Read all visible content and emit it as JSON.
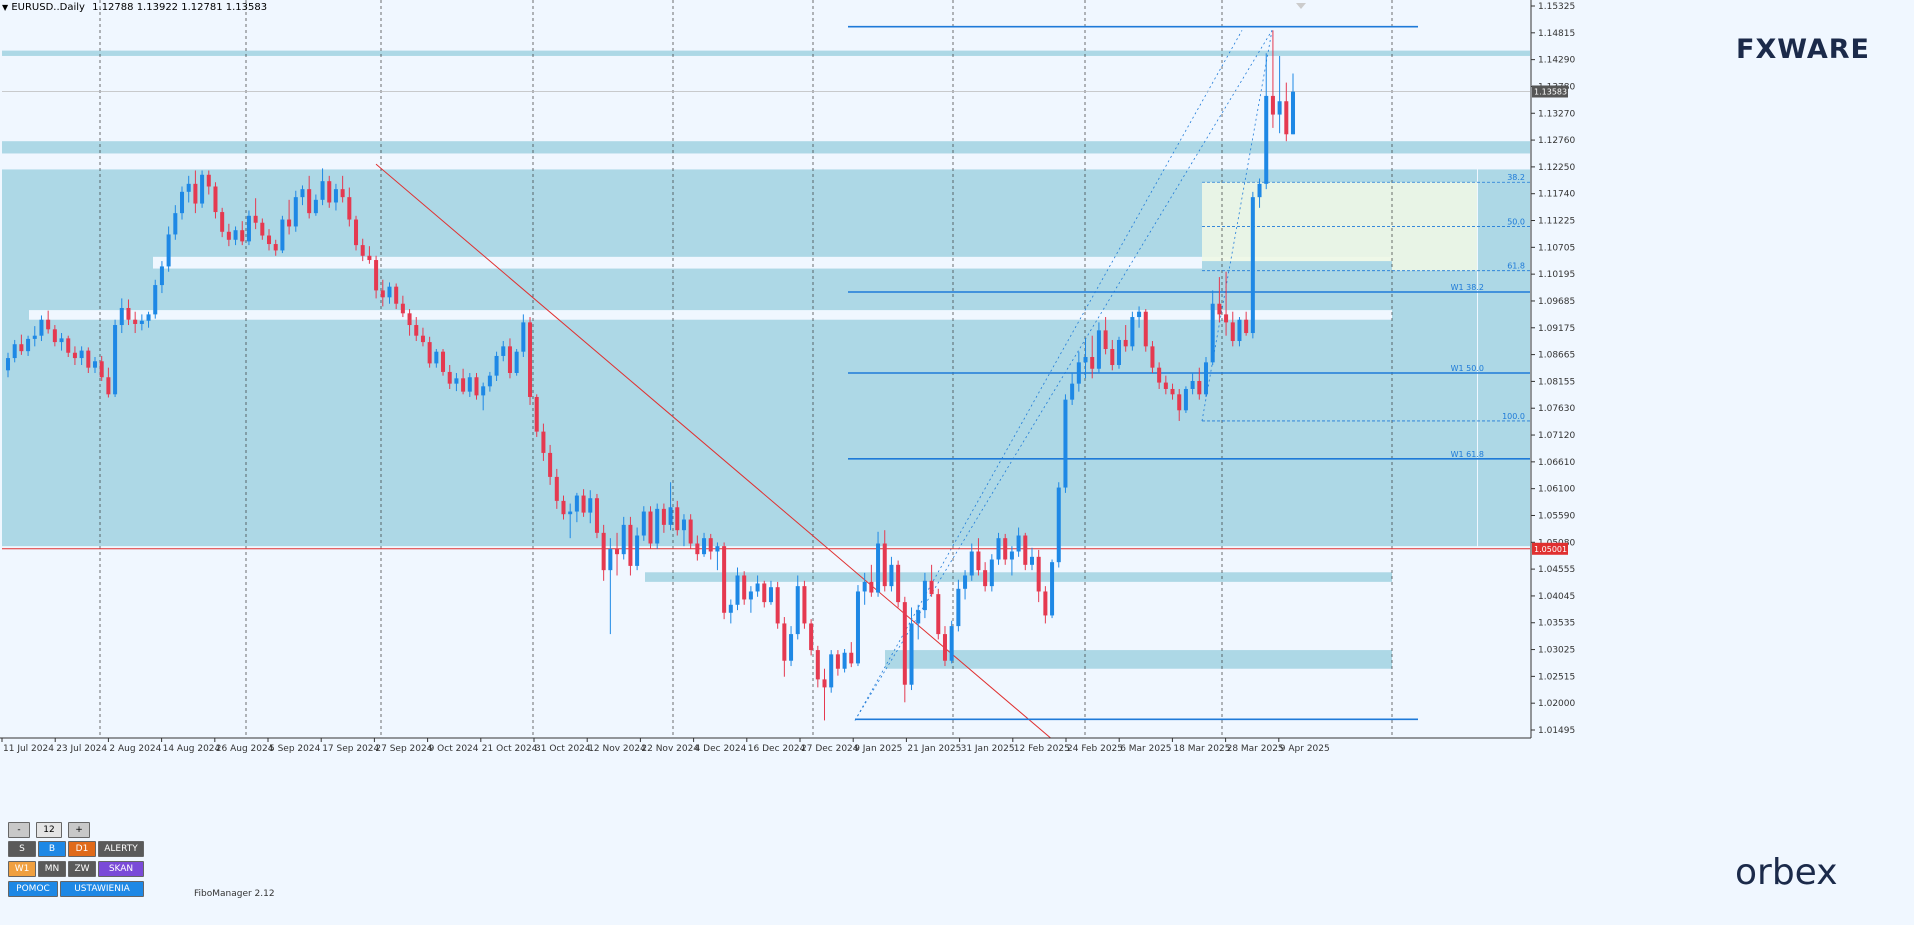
{
  "header": {
    "symbol": "EURUSD..Daily",
    "ohlc": "1.12788 1.13922 1.12781 1.13583"
  },
  "logos": {
    "top": "FXWARE",
    "bottom": "orbex"
  },
  "fibo_manager": "FiboManager 2.12",
  "panel": {
    "minus": "-",
    "value": "12",
    "plus": "+",
    "row1": [
      "S",
      "B",
      "D1",
      "ALERTY"
    ],
    "row2": [
      "W1",
      "MN",
      "ZW",
      "SKAN"
    ],
    "row3": [
      "POMOC",
      "USTAWIENIA"
    ]
  },
  "colors": {
    "bull": "#1e88e5",
    "bear": "#e53950",
    "zone": "#add8e6",
    "level": "#1e7ad8",
    "trend": "#e03030",
    "price_label": "#e03030"
  },
  "chart_data": {
    "type": "candlestick",
    "symbol": "EURUSD",
    "timeframe": "Daily",
    "ylim": [
      1.0145,
      1.153
    ],
    "y_ticks": [
      "1.15325",
      "1.14815",
      "1.14290",
      "1.13780",
      "1.13270",
      "1.12760",
      "1.12250",
      "1.11740",
      "1.11225",
      "1.10705",
      "1.10195",
      "1.09685",
      "1.09175",
      "1.08665",
      "1.08155",
      "1.07630",
      "1.07120",
      "1.06610",
      "1.06100",
      "1.05590",
      "1.05080",
      "1.04555",
      "1.04045",
      "1.03535",
      "1.03025",
      "1.02515",
      "1.02000",
      "1.01495"
    ],
    "x_labels": [
      "11 Jul 2024",
      "23 Jul 2024",
      "2 Aug 2024",
      "14 Aug 2024",
      "26 Aug 2024",
      "5 Sep 2024",
      "17 Sep 2024",
      "27 Sep 2024",
      "9 Oct 2024",
      "21 Oct 2024",
      "31 Oct 2024",
      "12 Nov 2024",
      "22 Nov 2024",
      "4 Dec 2024",
      "16 Dec 2024",
      "27 Dec 2024",
      "9 Jan 2025",
      "21 Jan 2025",
      "31 Jan 2025",
      "12 Feb 2025",
      "24 Feb 2025",
      "6 Mar 2025",
      "18 Mar 2025",
      "28 Mar 2025",
      "9 Apr 2025"
    ],
    "current_price": "1.13583",
    "red_level": "1.05001",
    "fib_labels": [
      "38.2",
      "50.0",
      "61.8",
      "100.0"
    ],
    "weekly_fib_labels": [
      "W1 38.2",
      "W1 50.0",
      "W1 61.8"
    ],
    "candles": [
      [
        1.0835,
        1.0868,
        1.0822,
        1.0858
      ],
      [
        1.0858,
        1.0892,
        1.085,
        1.0884
      ],
      [
        1.0884,
        1.0902,
        1.0864,
        1.0871
      ],
      [
        1.0871,
        1.09,
        1.0862,
        1.0894
      ],
      [
        1.0894,
        1.0918,
        1.088,
        1.09
      ],
      [
        1.09,
        1.0938,
        1.089,
        1.093
      ],
      [
        1.093,
        1.0947,
        1.0904,
        1.0912
      ],
      [
        1.0912,
        1.092,
        1.088,
        1.0888
      ],
      [
        1.0888,
        1.0905,
        1.0872,
        1.0895
      ],
      [
        1.0895,
        1.09,
        1.086,
        1.0868
      ],
      [
        1.0868,
        1.088,
        1.0845,
        1.0858
      ],
      [
        1.0858,
        1.088,
        1.0845,
        1.0872
      ],
      [
        1.0872,
        1.0878,
        1.083,
        1.084
      ],
      [
        1.084,
        1.086,
        1.083,
        1.0852
      ],
      [
        1.0852,
        1.0862,
        1.0815,
        1.0822
      ],
      [
        1.0822,
        1.084,
        1.0784,
        1.079
      ],
      [
        1.079,
        1.093,
        1.0785,
        1.092
      ],
      [
        1.092,
        1.097,
        1.0905,
        1.0952
      ],
      [
        1.0952,
        1.0968,
        1.092,
        1.093
      ],
      [
        1.093,
        1.0945,
        1.0905,
        1.0922
      ],
      [
        1.0922,
        1.094,
        1.091,
        1.0928
      ],
      [
        1.0928,
        1.0945,
        1.0915,
        1.094
      ],
      [
        1.094,
        1.1005,
        1.0932,
        1.0995
      ],
      [
        1.0995,
        1.104,
        1.098,
        1.103
      ],
      [
        1.103,
        1.1105,
        1.102,
        1.109
      ],
      [
        1.109,
        1.1145,
        1.108,
        1.113
      ],
      [
        1.113,
        1.118,
        1.1118,
        1.117
      ],
      [
        1.117,
        1.12,
        1.115,
        1.1185
      ],
      [
        1.1185,
        1.121,
        1.113,
        1.1148
      ],
      [
        1.1148,
        1.121,
        1.114,
        1.1202
      ],
      [
        1.1202,
        1.121,
        1.1165,
        1.118
      ],
      [
        1.118,
        1.1188,
        1.112,
        1.1132
      ],
      [
        1.1132,
        1.114,
        1.1085,
        1.1095
      ],
      [
        1.1095,
        1.111,
        1.1068,
        1.108
      ],
      [
        1.108,
        1.1105,
        1.107,
        1.1098
      ],
      [
        1.1098,
        1.1115,
        1.107,
        1.1077
      ],
      [
        1.1077,
        1.1135,
        1.107,
        1.1125
      ],
      [
        1.1125,
        1.1158,
        1.11,
        1.1112
      ],
      [
        1.1112,
        1.112,
        1.108,
        1.1088
      ],
      [
        1.1088,
        1.11,
        1.106,
        1.1072
      ],
      [
        1.1072,
        1.108,
        1.105,
        1.106
      ],
      [
        1.106,
        1.1125,
        1.1055,
        1.1118
      ],
      [
        1.1118,
        1.1155,
        1.109,
        1.1105
      ],
      [
        1.1105,
        1.1172,
        1.1095,
        1.116
      ],
      [
        1.116,
        1.1182,
        1.1145,
        1.1175
      ],
      [
        1.1175,
        1.12,
        1.112,
        1.113
      ],
      [
        1.113,
        1.1165,
        1.1125,
        1.1155
      ],
      [
        1.1155,
        1.1214,
        1.1145,
        1.119
      ],
      [
        1.119,
        1.12,
        1.114,
        1.115
      ],
      [
        1.115,
        1.1185,
        1.1135,
        1.1175
      ],
      [
        1.1175,
        1.12,
        1.115,
        1.116
      ],
      [
        1.116,
        1.1178,
        1.1105,
        1.1118
      ],
      [
        1.1118,
        1.1125,
        1.106,
        1.107
      ],
      [
        1.107,
        1.1082,
        1.104,
        1.105
      ],
      [
        1.105,
        1.1068,
        1.1035,
        1.1042
      ],
      [
        1.1042,
        1.105,
        1.097,
        1.0985
      ],
      [
        1.0985,
        1.1005,
        1.0955,
        1.0972
      ],
      [
        1.0972,
        1.1,
        1.096,
        1.0992
      ],
      [
        1.0992,
        1.0998,
        1.095,
        1.096
      ],
      [
        1.096,
        1.0975,
        1.0935,
        1.0942
      ],
      [
        1.0942,
        1.095,
        1.09,
        1.092
      ],
      [
        1.092,
        1.0935,
        1.089,
        1.09
      ],
      [
        1.09,
        1.0915,
        1.088,
        1.0888
      ],
      [
        1.0888,
        1.0898,
        1.084,
        1.0848
      ],
      [
        1.0848,
        1.0875,
        1.084,
        1.087
      ],
      [
        1.087,
        1.0875,
        1.0825,
        1.0832
      ],
      [
        1.0832,
        1.0845,
        1.08,
        1.081
      ],
      [
        1.081,
        1.083,
        1.0796,
        1.082
      ],
      [
        1.082,
        1.0838,
        1.079,
        1.0795
      ],
      [
        1.0795,
        1.083,
        1.0785,
        1.0822
      ],
      [
        1.0822,
        1.083,
        1.078,
        1.0788
      ],
      [
        1.0788,
        1.0812,
        1.076,
        1.0805
      ],
      [
        1.0805,
        1.0832,
        1.0795,
        1.0825
      ],
      [
        1.0825,
        1.087,
        1.0815,
        1.0862
      ],
      [
        1.0862,
        1.089,
        1.0852,
        1.088
      ],
      [
        1.088,
        1.0895,
        1.082,
        1.083
      ],
      [
        1.083,
        1.0875,
        1.0825,
        1.087
      ],
      [
        1.087,
        1.094,
        1.086,
        1.0925
      ],
      [
        1.0925,
        1.0935,
        1.077,
        1.0785
      ],
      [
        1.0785,
        1.079,
        1.071,
        1.072
      ],
      [
        1.072,
        1.0735,
        1.0665,
        1.068
      ],
      [
        1.068,
        1.0695,
        1.062,
        1.0635
      ],
      [
        1.0635,
        1.065,
        1.0575,
        1.059
      ],
      [
        1.059,
        1.06,
        1.0555,
        1.0565
      ],
      [
        1.0565,
        1.0585,
        1.052,
        1.057
      ],
      [
        1.057,
        1.0605,
        1.055,
        1.06
      ],
      [
        1.06,
        1.0612,
        1.056,
        1.0568
      ],
      [
        1.0568,
        1.061,
        1.0548,
        1.0595
      ],
      [
        1.0595,
        1.0603,
        1.052,
        1.053
      ],
      [
        1.053,
        1.0545,
        1.044,
        1.046
      ],
      [
        1.046,
        1.052,
        1.034,
        1.05
      ],
      [
        1.05,
        1.053,
        1.045,
        1.049
      ],
      [
        1.049,
        1.056,
        1.048,
        1.0545
      ],
      [
        1.0545,
        1.056,
        1.045,
        1.0468
      ],
      [
        1.0468,
        1.054,
        1.046,
        1.0525
      ],
      [
        1.0525,
        1.058,
        1.0515,
        1.057
      ],
      [
        1.057,
        1.058,
        1.05,
        1.051
      ],
      [
        1.051,
        1.0585,
        1.05,
        1.0575
      ],
      [
        1.0575,
        1.0585,
        1.053,
        1.0545
      ],
      [
        1.0545,
        1.0625,
        1.0535,
        1.0578
      ],
      [
        1.0578,
        1.059,
        1.0525,
        1.0535
      ],
      [
        1.0535,
        1.0565,
        1.0505,
        1.0555
      ],
      [
        1.0555,
        1.0565,
        1.05,
        1.051
      ],
      [
        1.051,
        1.0525,
        1.0478,
        1.049
      ],
      [
        1.049,
        1.053,
        1.0485,
        1.052
      ],
      [
        1.052,
        1.0528,
        1.048,
        1.0495
      ],
      [
        1.0495,
        1.0512,
        1.046,
        1.0505
      ],
      [
        1.0505,
        1.0512,
        1.0368,
        1.038
      ],
      [
        1.038,
        1.0405,
        1.036,
        1.0395
      ],
      [
        1.0395,
        1.0465,
        1.0385,
        1.045
      ],
      [
        1.045,
        1.0458,
        1.0395,
        1.0405
      ],
      [
        1.0405,
        1.043,
        1.038,
        1.042
      ],
      [
        1.042,
        1.045,
        1.041,
        1.0435
      ],
      [
        1.0435,
        1.044,
        1.039,
        1.04
      ],
      [
        1.04,
        1.044,
        1.0395,
        1.0428
      ],
      [
        1.0428,
        1.0438,
        1.035,
        1.036
      ],
      [
        1.036,
        1.0372,
        1.026,
        1.029
      ],
      [
        1.029,
        1.0355,
        1.028,
        1.034
      ],
      [
        1.034,
        1.045,
        1.033,
        1.043
      ],
      [
        1.043,
        1.044,
        1.035,
        1.036
      ],
      [
        1.036,
        1.0368,
        1.03,
        1.031
      ],
      [
        1.031,
        1.0318,
        1.024,
        1.0255
      ],
      [
        1.0255,
        1.0275,
        1.0178,
        1.024
      ],
      [
        1.024,
        1.031,
        1.023,
        1.0302
      ],
      [
        1.0302,
        1.031,
        1.0262,
        1.0275
      ],
      [
        1.0275,
        1.0312,
        1.0268,
        1.0305
      ],
      [
        1.0305,
        1.0325,
        1.0278,
        1.0285
      ],
      [
        1.0285,
        1.0432,
        1.028,
        1.042
      ],
      [
        1.042,
        1.0455,
        1.0395,
        1.0438
      ],
      [
        1.0438,
        1.047,
        1.041,
        1.0418
      ],
      [
        1.0418,
        1.0532,
        1.041,
        1.051
      ],
      [
        1.051,
        1.0535,
        1.042,
        1.043
      ],
      [
        1.043,
        1.0485,
        1.042,
        1.047
      ],
      [
        1.047,
        1.0478,
        1.039,
        1.04
      ],
      [
        1.04,
        1.041,
        1.0212,
        1.0245
      ],
      [
        1.0245,
        1.039,
        1.0235,
        1.036
      ],
      [
        1.036,
        1.0395,
        1.033,
        1.0385
      ],
      [
        1.0385,
        1.0455,
        1.037,
        1.044
      ],
      [
        1.044,
        1.047,
        1.041,
        1.0415
      ],
      [
        1.0415,
        1.0425,
        1.033,
        1.034
      ],
      [
        1.034,
        1.0355,
        1.028,
        1.029
      ],
      [
        1.029,
        1.0365,
        1.0285,
        1.0355
      ],
      [
        1.0355,
        1.0442,
        1.0345,
        1.0425
      ],
      [
        1.0425,
        1.046,
        1.0405,
        1.045
      ],
      [
        1.045,
        1.051,
        1.044,
        1.0495
      ],
      [
        1.0495,
        1.052,
        1.045,
        1.046
      ],
      [
        1.046,
        1.0475,
        1.042,
        1.043
      ],
      [
        1.043,
        1.049,
        1.042,
        1.048
      ],
      [
        1.048,
        1.053,
        1.047,
        1.052
      ],
      [
        1.052,
        1.0528,
        1.047,
        1.048
      ],
      [
        1.048,
        1.0505,
        1.045,
        1.0495
      ],
      [
        1.0495,
        1.054,
        1.0485,
        1.0525
      ],
      [
        1.0525,
        1.053,
        1.046,
        1.047
      ],
      [
        1.047,
        1.0502,
        1.046,
        1.0485
      ],
      [
        1.0485,
        1.0498,
        1.04,
        1.042
      ],
      [
        1.042,
        1.043,
        1.036,
        1.0375
      ],
      [
        1.0375,
        1.048,
        1.037,
        1.0475
      ],
      [
        1.0475,
        1.0625,
        1.0465,
        1.0615
      ],
      [
        1.0615,
        1.079,
        1.0605,
        1.078
      ],
      [
        1.078,
        1.083,
        1.077,
        1.081
      ],
      [
        1.081,
        1.087,
        1.0795,
        1.085
      ],
      [
        1.085,
        1.0895,
        1.082,
        1.086
      ],
      [
        1.086,
        1.09,
        1.082,
        1.0838
      ],
      [
        1.0838,
        1.0925,
        1.083,
        1.091
      ],
      [
        1.091,
        1.0935,
        1.0865,
        1.0875
      ],
      [
        1.0875,
        1.0892,
        1.0835,
        1.0845
      ],
      [
        1.0845,
        1.0898,
        1.0838,
        1.0892
      ],
      [
        1.0892,
        1.092,
        1.087,
        1.088
      ],
      [
        1.088,
        1.0945,
        1.0872,
        1.0935
      ],
      [
        1.0935,
        1.0955,
        1.0915,
        1.0945
      ],
      [
        1.0945,
        1.095,
        1.087,
        1.088
      ],
      [
        1.088,
        1.089,
        1.083,
        1.084
      ],
      [
        1.084,
        1.085,
        1.08,
        1.0812
      ],
      [
        1.0812,
        1.0825,
        1.079,
        1.08
      ],
      [
        1.08,
        1.081,
        1.078,
        1.079
      ],
      [
        1.079,
        1.08,
        1.074,
        1.076
      ],
      [
        1.076,
        1.0805,
        1.0755,
        1.08
      ],
      [
        1.08,
        1.083,
        1.079,
        1.0815
      ],
      [
        1.0815,
        1.084,
        1.078,
        1.079
      ],
      [
        1.079,
        1.086,
        1.0785,
        1.085
      ],
      [
        1.085,
        1.0985,
        1.0845,
        1.096
      ],
      [
        1.096,
        1.101,
        1.0925,
        1.094
      ],
      [
        1.094,
        1.102,
        1.09,
        1.0925
      ],
      [
        1.0925,
        1.0945,
        1.088,
        1.089
      ],
      [
        1.089,
        1.0935,
        1.088,
        1.093
      ],
      [
        1.093,
        1.0945,
        1.09,
        1.0905
      ],
      [
        1.0905,
        1.117,
        1.0895,
        1.116
      ],
      [
        1.116,
        1.1195,
        1.114,
        1.1185
      ],
      [
        1.1185,
        1.143,
        1.1175,
        1.135
      ],
      [
        1.135,
        1.1473,
        1.129,
        1.1315
      ],
      [
        1.1315,
        1.1425,
        1.128,
        1.134
      ],
      [
        1.134,
        1.1375,
        1.1265,
        1.1278
      ],
      [
        1.1278,
        1.1392,
        1.1278,
        1.1358
      ]
    ]
  }
}
